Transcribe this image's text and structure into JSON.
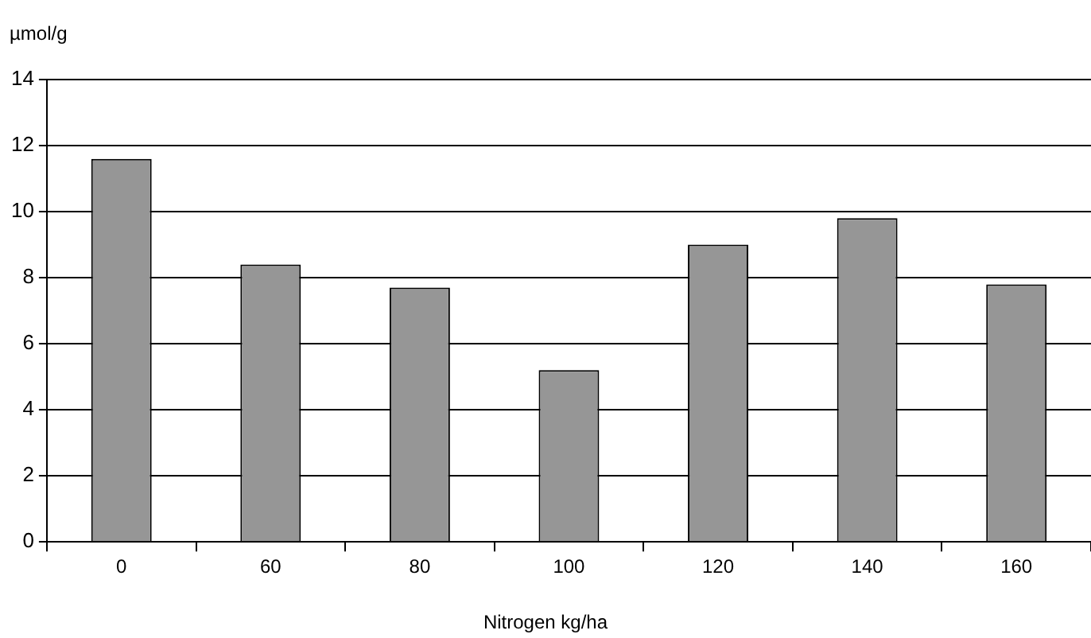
{
  "chart_data": {
    "type": "bar",
    "ylabel": "µmol/g",
    "xlabel": "Nitrogen kg/ha",
    "categories": [
      "0",
      "60",
      "80",
      "100",
      "120",
      "140",
      "160"
    ],
    "values": [
      11.6,
      8.4,
      7.7,
      5.2,
      9.0,
      9.8,
      7.8
    ],
    "color": "#969696",
    "ylim": [
      0,
      14
    ],
    "yticks": [
      0,
      2,
      4,
      6,
      8,
      10,
      12,
      14
    ],
    "grid": "y",
    "legend": false
  }
}
